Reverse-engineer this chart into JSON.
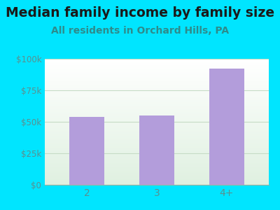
{
  "categories": [
    "2",
    "3",
    "4+"
  ],
  "values": [
    54000,
    55000,
    92000
  ],
  "bar_color": "#b39ddb",
  "title": "Median family income by family size",
  "subtitle": "All residents in Orchard Hills, PA",
  "title_fontsize": 13.5,
  "subtitle_fontsize": 10,
  "title_color": "#1a1a1a",
  "subtitle_color": "#2e8b8b",
  "tick_color": "#5a9090",
  "outer_bg": "#00e5ff",
  "plot_bg_top": "#ffffff",
  "plot_bg_bottom": "#dff0e0",
  "ylim": [
    0,
    100000
  ],
  "yticks": [
    0,
    25000,
    50000,
    75000,
    100000
  ],
  "ytick_labels": [
    "$0",
    "$25k",
    "$50k",
    "$75k",
    "$100k"
  ],
  "grid_color": "#c5dbc5",
  "bar_width": 0.5
}
